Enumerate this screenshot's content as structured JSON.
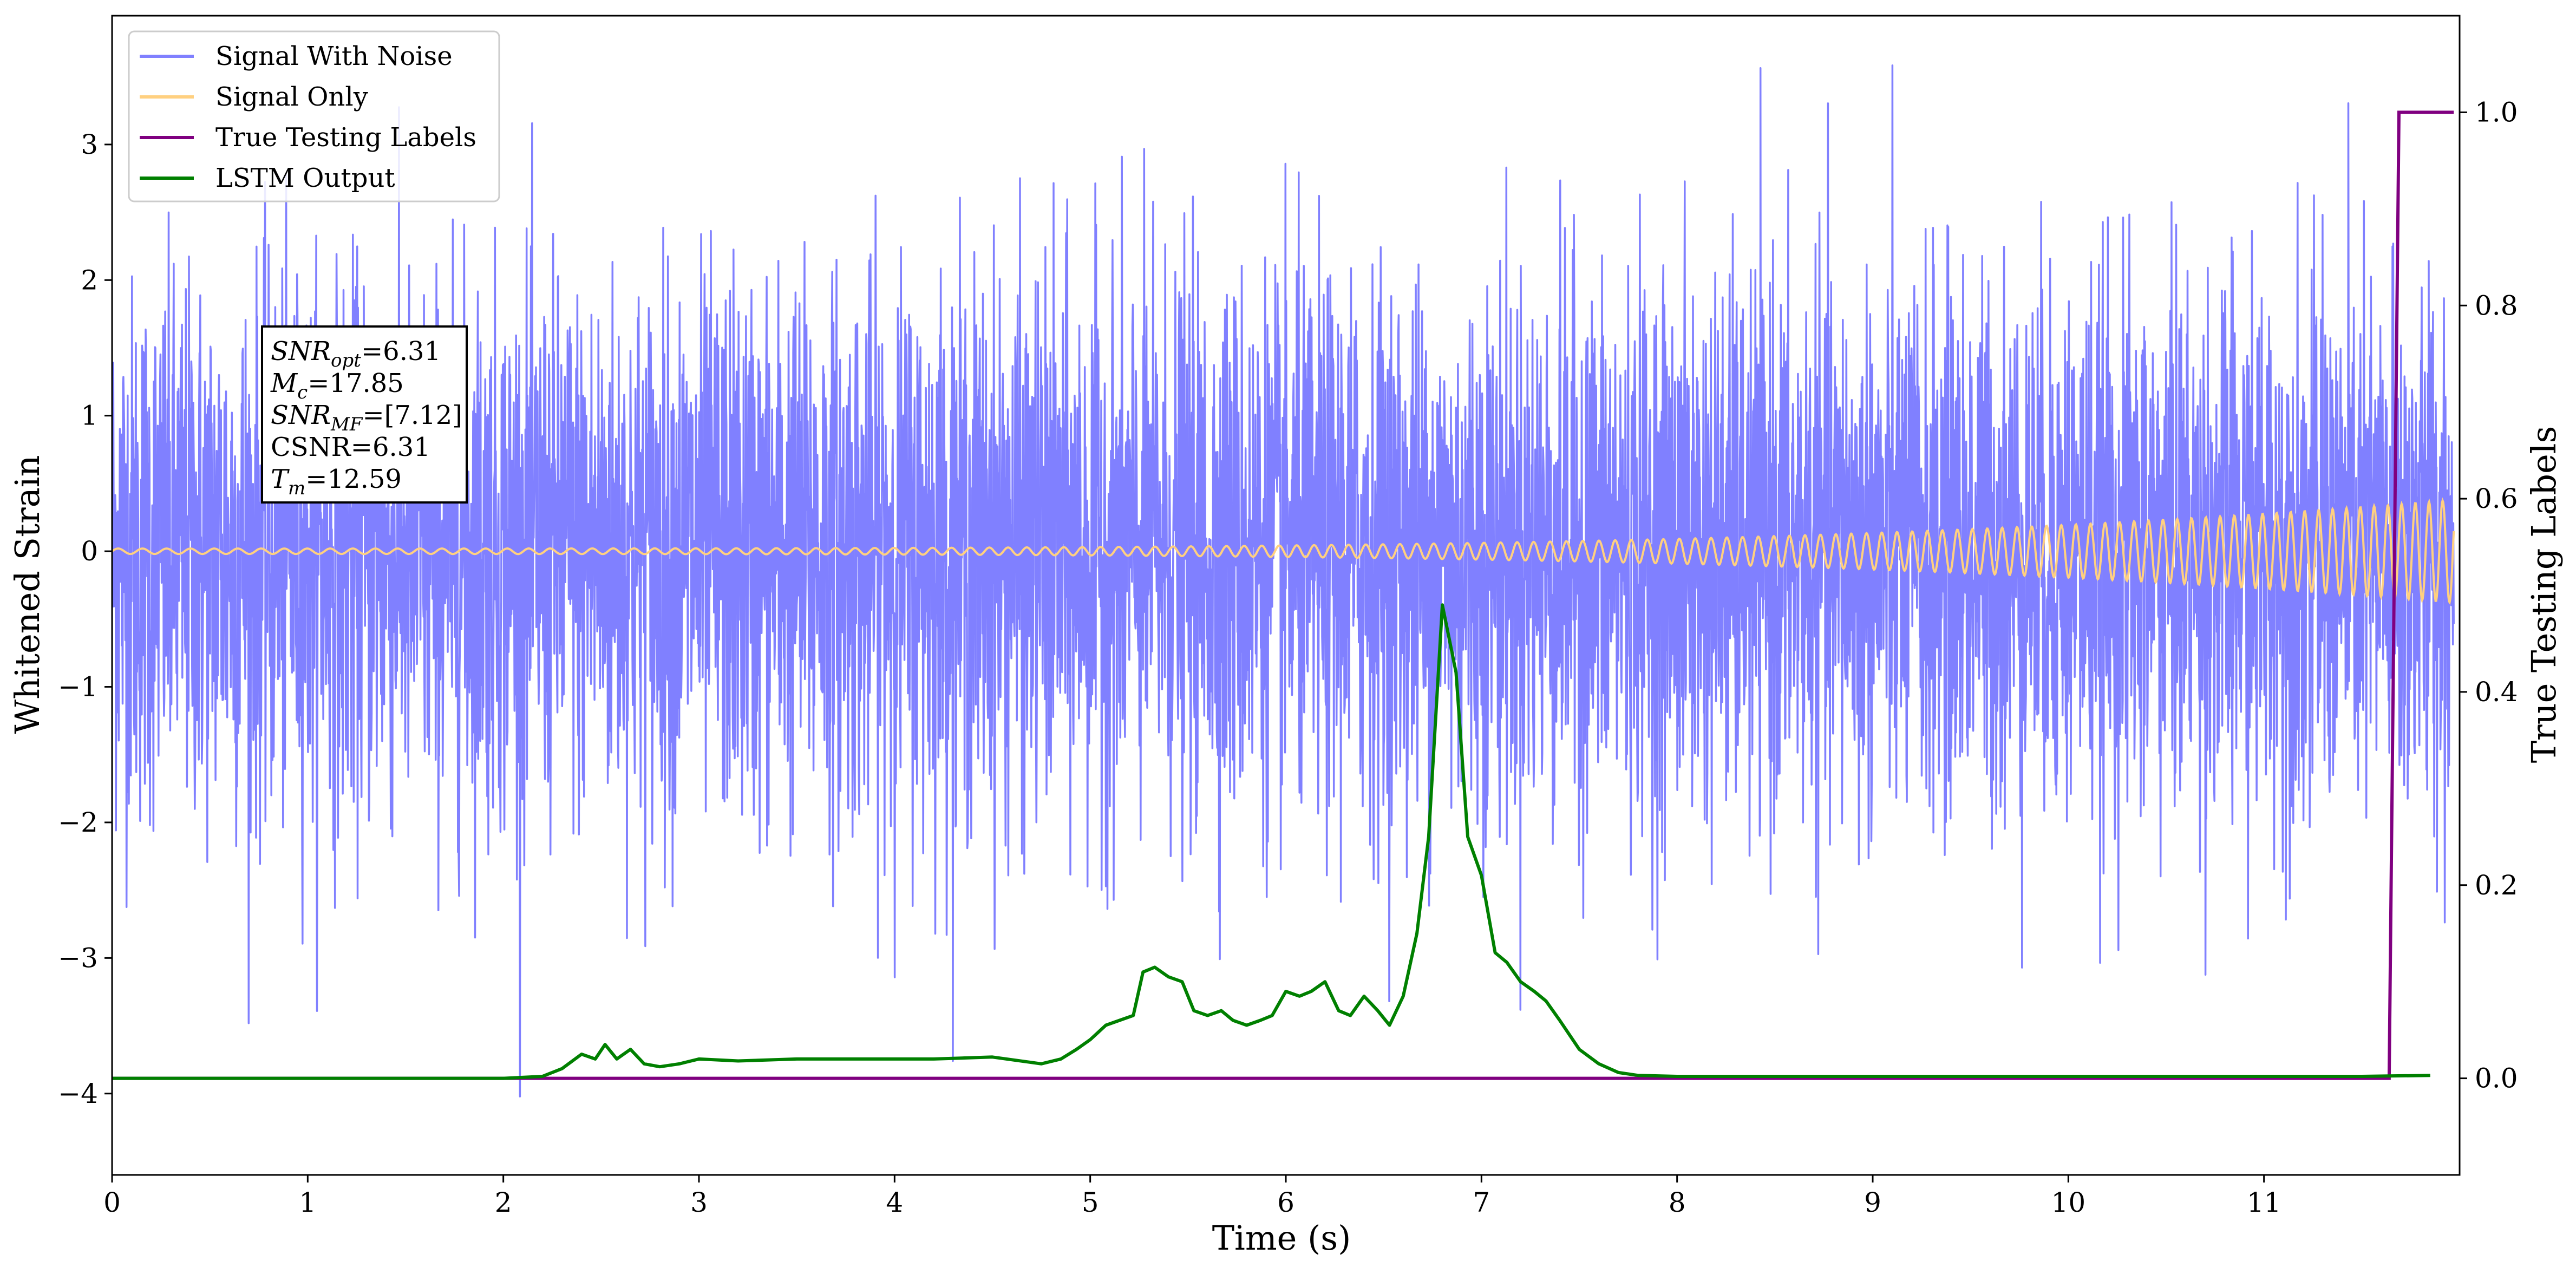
{
  "chart_data": {
    "type": "line",
    "xlabel": "Time (s)",
    "ylabel_left": "Whitened Strain",
    "ylabel_right": "True Testing Labels",
    "xlim": [
      0,
      12
    ],
    "ylim_left": [
      -4.6,
      3.95
    ],
    "ylim_right": [
      -0.1,
      1.1
    ],
    "xticks": [
      0,
      1,
      2,
      3,
      4,
      5,
      6,
      7,
      8,
      9,
      10,
      11
    ],
    "yticks_left": [
      3,
      2,
      1,
      0,
      -1,
      -2,
      -3,
      -4
    ],
    "yticks_right": [
      1.0,
      0.8,
      0.6,
      0.4,
      0.2,
      0.0
    ],
    "grid": false,
    "legend_position": "top-left",
    "series": [
      {
        "name": "Signal With Noise",
        "axis": "left",
        "color": "#8080ff",
        "description_values": {
          "std": 1.0,
          "min": -4.2,
          "max": 3.6
        }
      },
      {
        "name": "Signal Only",
        "axis": "left",
        "color": "#ffd080",
        "chirp": {
          "start_amplitude": 0.02,
          "end_amplitude": 0.38,
          "end_time": 11.97
        }
      },
      {
        "name": "True Testing Labels",
        "axis": "right",
        "color": "#800080",
        "x": [
          0,
          11.64,
          11.69,
          11.97
        ],
        "y": [
          0.0,
          0.0,
          1.0,
          1.0
        ]
      },
      {
        "name": "LSTM Output",
        "axis": "right",
        "color": "#008000",
        "x": [
          0,
          2.0,
          2.2,
          2.3,
          2.4,
          2.47,
          2.52,
          2.58,
          2.65,
          2.72,
          2.8,
          2.9,
          3.0,
          3.2,
          3.5,
          3.8,
          4.0,
          4.2,
          4.5,
          4.75,
          4.85,
          4.93,
          5.0,
          5.08,
          5.15,
          5.22,
          5.27,
          5.33,
          5.4,
          5.47,
          5.53,
          5.6,
          5.67,
          5.73,
          5.8,
          5.87,
          5.93,
          6.0,
          6.07,
          6.13,
          6.2,
          6.27,
          6.33,
          6.4,
          6.47,
          6.53,
          6.6,
          6.67,
          6.73,
          6.8,
          6.87,
          6.93,
          7.0,
          7.07,
          7.13,
          7.2,
          7.27,
          7.33,
          7.4,
          7.5,
          7.6,
          7.7,
          7.8,
          8.0,
          8.5,
          9.0,
          9.5,
          10.0,
          10.5,
          11.0,
          11.5,
          11.85
        ],
        "y": [
          0.0,
          0.0,
          0.002,
          0.01,
          0.025,
          0.02,
          0.035,
          0.02,
          0.03,
          0.015,
          0.012,
          0.015,
          0.02,
          0.018,
          0.02,
          0.02,
          0.02,
          0.02,
          0.022,
          0.015,
          0.02,
          0.03,
          0.04,
          0.055,
          0.06,
          0.065,
          0.11,
          0.115,
          0.105,
          0.1,
          0.07,
          0.065,
          0.07,
          0.06,
          0.055,
          0.06,
          0.065,
          0.09,
          0.085,
          0.09,
          0.1,
          0.07,
          0.065,
          0.085,
          0.07,
          0.055,
          0.085,
          0.15,
          0.25,
          0.49,
          0.42,
          0.25,
          0.21,
          0.13,
          0.12,
          0.1,
          0.09,
          0.08,
          0.06,
          0.03,
          0.015,
          0.006,
          0.003,
          0.002,
          0.002,
          0.002,
          0.002,
          0.002,
          0.002,
          0.002,
          0.002,
          0.003
        ]
      }
    ],
    "annotation_lines": [
      {
        "sym": "SNR",
        "sub": "opt",
        "value": "=6.31"
      },
      {
        "sym": "M",
        "sub": "c",
        "value": "=17.85"
      },
      {
        "sym": "SNR",
        "sub": "MF",
        "value": "=[7.12]"
      },
      {
        "sym": "",
        "sub": "",
        "value": "CSNR=6.31"
      },
      {
        "sym": "T",
        "sub": "m",
        "value": "=12.59"
      }
    ]
  }
}
